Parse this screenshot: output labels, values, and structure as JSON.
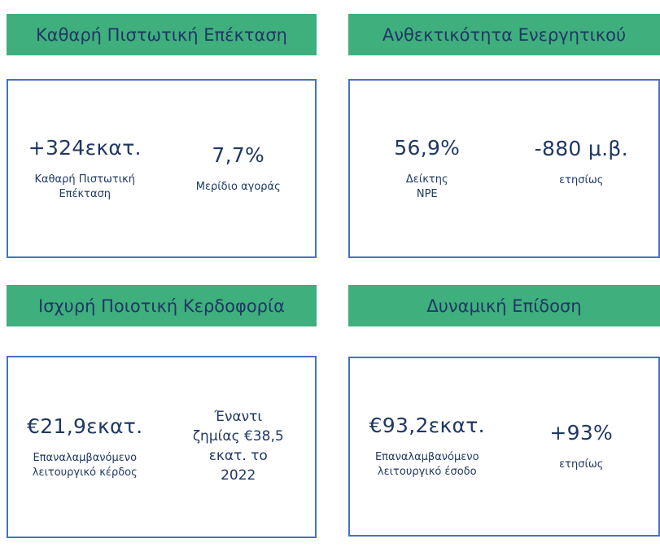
{
  "colors": {
    "banner_bg": "#3FAF7D",
    "heading_text": "#1F3864",
    "box_border": "#4472C4",
    "value_text": "#1F3864"
  },
  "cards": [
    {
      "id": "net-credit-expansion",
      "title": "Καθαρή Πιστωτική Επέκταση",
      "metrics": [
        {
          "value": "+324εκατ.",
          "label": "Καθαρή Πιστωτική\nΕπέκταση"
        },
        {
          "value": "7,7%",
          "label": "Μερίδιο αγοράς"
        }
      ]
    },
    {
      "id": "asset-resilience",
      "title": "Ανθεκτικότητα Ενεργητικού",
      "metrics": [
        {
          "value": "56,9%",
          "label": "Δείκτης\nNPE"
        },
        {
          "value": "-880 μ.β.",
          "label": "ετησίως"
        }
      ]
    },
    {
      "id": "strong-quality-profitability",
      "title": "Ισχυρή Ποιοτική Κερδοφορία",
      "metrics": [
        {
          "value": "€21,9εκατ.",
          "label": "Επαναλαμβανόμενο\nλειτουργικό κέρδος"
        },
        {
          "note": "Έναντι\nζημίας €38,5\nεκατ. το\n2022"
        }
      ]
    },
    {
      "id": "dynamic-performance",
      "title": "Δυναμική Επίδοση",
      "metrics": [
        {
          "value": "€93,2εκατ.",
          "label": "Επαναλαμβανόμενο\nλειτουργικό έσοδο"
        },
        {
          "value": "+93%",
          "label": "ετησίως"
        }
      ]
    }
  ]
}
